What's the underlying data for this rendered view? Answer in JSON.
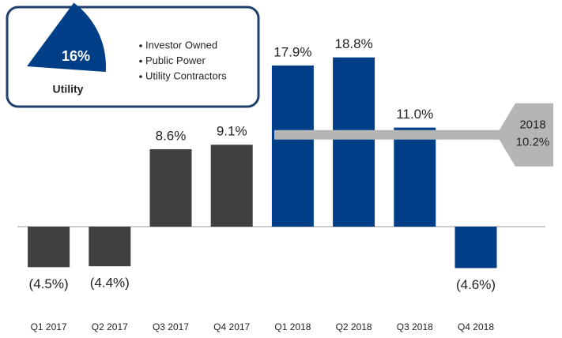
{
  "chart_data": {
    "type": "bar",
    "categories": [
      "Q1 2017",
      "Q2 2017",
      "Q3 2017",
      "Q4 2017",
      "Q1 2018",
      "Q2 2018",
      "Q3 2018",
      "Q4 2018"
    ],
    "values": [
      -4.5,
      -4.4,
      8.6,
      9.1,
      17.9,
      18.8,
      11.0,
      -4.6
    ],
    "value_labels": [
      "(4.5%)",
      "(4.4%)",
      "8.6%",
      "9.1%",
      "17.9%",
      "18.8%",
      "11.0%",
      "(4.6%)"
    ],
    "colors": [
      "#404040",
      "#404040",
      "#404040",
      "#404040",
      "#003f87",
      "#003f87",
      "#003f87",
      "#003f87"
    ],
    "reference": {
      "name": "2018",
      "value": 10.2,
      "value_label": "10.2%",
      "color": "#b5b5b5"
    }
  },
  "inset": {
    "share": 16,
    "share_label": "16%",
    "name": "Utility",
    "color": "#003f87",
    "items": [
      "Investor Owned",
      "Public Power",
      "Utility Contractors"
    ]
  }
}
